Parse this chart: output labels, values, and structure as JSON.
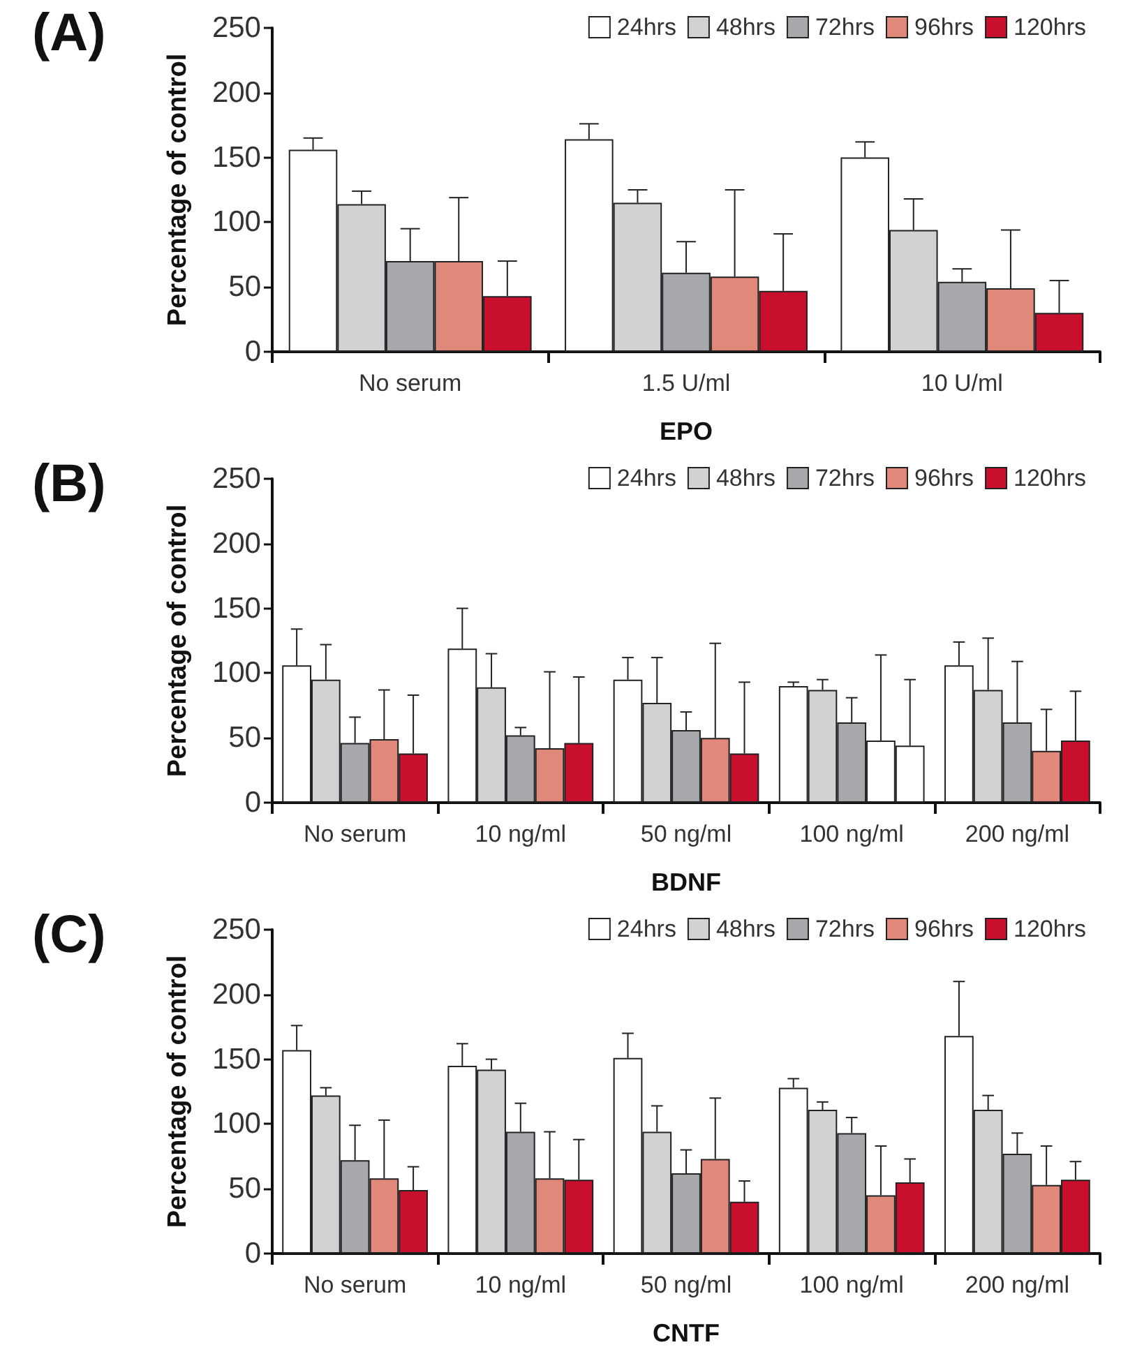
{
  "chart_data": [
    {
      "type": "bar",
      "title": "(A)",
      "xlabel": "EPO",
      "ylabel": "Percentage of control",
      "categories": [
        "No serum",
        "1.5 U/ml",
        "10 U/ml"
      ],
      "ylim": [
        0,
        250
      ],
      "yticks": [
        0,
        50,
        100,
        150,
        200,
        250
      ],
      "grid": false,
      "legend": "top right",
      "series": [
        {
          "name": "24hrs",
          "color": "#ffffff",
          "values": [
            156,
            164,
            150
          ],
          "errors": [
            [
              156,
              165
            ],
            [
              164,
              176
            ],
            [
              150,
              162
            ]
          ]
        },
        {
          "name": "48hrs",
          "color": "#d1d2d4",
          "values": [
            114,
            115,
            94
          ],
          "errors": [
            [
              114,
              124
            ],
            [
              115,
              125
            ],
            [
              94,
              118
            ]
          ]
        },
        {
          "name": "72hrs",
          "color": "#a6a8ab",
          "values": [
            70,
            61,
            54
          ],
          "errors": [
            [
              70,
              95
            ],
            [
              61,
              85
            ],
            [
              54,
              64
            ]
          ]
        },
        {
          "name": "96hrs",
          "color": "#e0887a",
          "values": [
            70,
            58,
            49
          ],
          "errors": [
            [
              70,
              119
            ],
            [
              58,
              125
            ],
            [
              49,
              94
            ]
          ]
        },
        {
          "name": "120hrs",
          "color": "#c8102e",
          "values": [
            43,
            47,
            30
          ],
          "errors": [
            [
              43,
              70
            ],
            [
              47,
              91
            ],
            [
              30,
              55
            ]
          ]
        }
      ]
    },
    {
      "type": "bar",
      "title": "(B)",
      "xlabel": "BDNF",
      "ylabel": "Percentage of control",
      "categories": [
        "No serum",
        "10 ng/ml",
        "50 ng/ml",
        "100 ng/ml",
        "200 ng/ml"
      ],
      "ylim": [
        0,
        250
      ],
      "yticks": [
        0,
        50,
        100,
        150,
        200,
        250
      ],
      "grid": false,
      "legend": "top right",
      "series": [
        {
          "name": "24hrs",
          "color": "#ffffff",
          "values": [
            106,
            119,
            95,
            90,
            106
          ],
          "errors": [
            [
              106,
              134
            ],
            [
              119,
              150
            ],
            [
              95,
              112
            ],
            [
              90,
              93
            ],
            [
              106,
              124
            ]
          ]
        },
        {
          "name": "48hrs",
          "color": "#d1d2d4",
          "values": [
            95,
            89,
            77,
            87,
            87
          ],
          "errors": [
            [
              95,
              122
            ],
            [
              89,
              115
            ],
            [
              77,
              112
            ],
            [
              87,
              95
            ],
            [
              87,
              127
            ]
          ]
        },
        {
          "name": "72hrs",
          "color": "#a6a8ab",
          "values": [
            46,
            52,
            56,
            62,
            62
          ],
          "errors": [
            [
              46,
              66
            ],
            [
              52,
              58
            ],
            [
              56,
              70
            ],
            [
              62,
              81
            ],
            [
              62,
              109
            ]
          ]
        },
        {
          "name": "96hrs",
          "color": "#e0887a",
          "colors": [
            "#e0887a",
            "#e0887a",
            "#e0887a",
            "#ffffff",
            "#e0887a"
          ],
          "values": [
            49,
            42,
            50,
            48,
            40
          ],
          "errors": [
            [
              49,
              87
            ],
            [
              42,
              101
            ],
            [
              50,
              123
            ],
            [
              48,
              114
            ],
            [
              40,
              72
            ]
          ]
        },
        {
          "name": "120hrs",
          "color": "#c8102e",
          "colors": [
            "#c8102e",
            "#c8102e",
            "#c8102e",
            "#ffffff",
            "#c8102e"
          ],
          "values": [
            38,
            46,
            38,
            44,
            48
          ],
          "errors": [
            [
              38,
              83
            ],
            [
              46,
              97
            ],
            [
              38,
              93
            ],
            [
              44,
              95
            ],
            [
              48,
              86
            ]
          ]
        }
      ]
    },
    {
      "type": "bar",
      "title": "(C)",
      "xlabel": "CNTF",
      "ylabel": "Percentage of control",
      "categories": [
        "No serum",
        "10 ng/ml",
        "50 ng/ml",
        "100 ng/ml",
        "200 ng/ml"
      ],
      "ylim": [
        0,
        250
      ],
      "yticks": [
        0,
        50,
        100,
        150,
        200,
        250
      ],
      "grid": false,
      "legend": "top right",
      "series": [
        {
          "name": "24hrs",
          "color": "#ffffff",
          "values": [
            157,
            145,
            151,
            128,
            168
          ],
          "errors": [
            [
              157,
              176
            ],
            [
              145,
              162
            ],
            [
              151,
              170
            ],
            [
              128,
              135
            ],
            [
              168,
              210
            ]
          ]
        },
        {
          "name": "48hrs",
          "color": "#d1d2d4",
          "values": [
            122,
            142,
            94,
            111,
            111
          ],
          "errors": [
            [
              122,
              128
            ],
            [
              142,
              150
            ],
            [
              94,
              114
            ],
            [
              111,
              117
            ],
            [
              111,
              122
            ]
          ]
        },
        {
          "name": "72hrs",
          "color": "#a6a8ab",
          "values": [
            72,
            94,
            62,
            93,
            77
          ],
          "errors": [
            [
              72,
              99
            ],
            [
              94,
              116
            ],
            [
              62,
              80
            ],
            [
              93,
              105
            ],
            [
              77,
              93
            ]
          ]
        },
        {
          "name": "96hrs",
          "color": "#e0887a",
          "values": [
            58,
            58,
            73,
            45,
            53
          ],
          "errors": [
            [
              58,
              103
            ],
            [
              58,
              94
            ],
            [
              73,
              120
            ],
            [
              45,
              83
            ],
            [
              53,
              83
            ]
          ]
        },
        {
          "name": "120hrs",
          "color": "#c8102e",
          "values": [
            49,
            57,
            40,
            55,
            57
          ],
          "errors": [
            [
              49,
              67
            ],
            [
              57,
              88
            ],
            [
              40,
              56
            ],
            [
              55,
              73
            ],
            [
              57,
              71
            ]
          ]
        }
      ]
    }
  ]
}
